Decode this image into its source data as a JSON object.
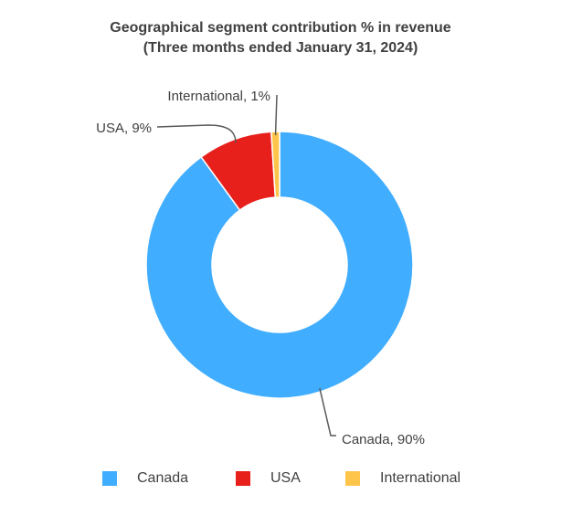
{
  "chart_data": {
    "type": "pie",
    "donut": true,
    "title": "Geographical segment contribution % in revenue",
    "subtitle": "(Three months ended January 31, 2024)",
    "categories": [
      "Canada",
      "USA",
      "International"
    ],
    "values": [
      90,
      9,
      1
    ],
    "unit": "%",
    "data_labels": [
      "Canada, 90%",
      "USA, 9%",
      "International, 1%"
    ],
    "colors": [
      "#41ADFF",
      "#E8201C",
      "#FFC44A"
    ],
    "legend": {
      "position": "bottom",
      "entries": [
        "Canada",
        "USA",
        "International"
      ]
    }
  }
}
